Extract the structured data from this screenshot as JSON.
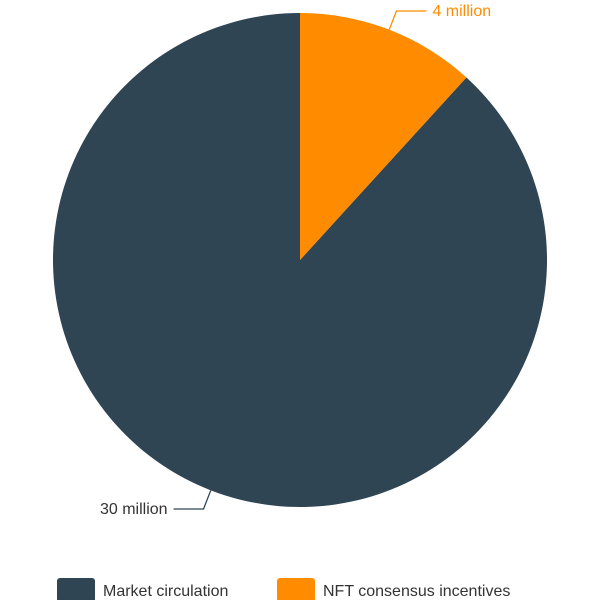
{
  "chart_data": {
    "type": "pie",
    "start_angle_deg": 90,
    "direction": "counterclockwise",
    "slices": [
      {
        "name": "Market circulation",
        "value": 30,
        "label": "30 million",
        "color": "#2f4554"
      },
      {
        "name": "NFT consensus incentives",
        "value": 4,
        "label": "4 million",
        "color": "#ff8c00"
      }
    ],
    "legend": {
      "position": "bottom-center",
      "items": [
        "Market circulation",
        "NFT consensus incentives"
      ]
    }
  }
}
